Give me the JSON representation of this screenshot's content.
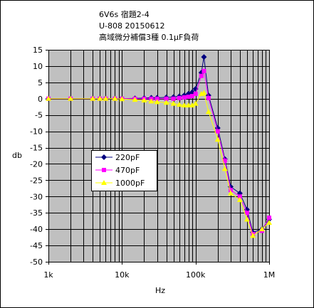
{
  "chart_data": {
    "type": "line",
    "title_lines": [
      "6V6s 宿題2-4",
      "U-808 20150612",
      "高域微分補償3種 0.1μF負荷"
    ],
    "xlabel": "Hz",
    "ylabel": "db",
    "x_scale": "log",
    "xlim": [
      1000,
      1000000
    ],
    "ylim": [
      -50,
      15
    ],
    "x_ticks": [
      1000,
      10000,
      100000,
      1000000
    ],
    "x_tick_labels": [
      "1k",
      "10k",
      "100k",
      "1M"
    ],
    "y_ticks": [
      15,
      10,
      5,
      0,
      -5,
      -10,
      -15,
      -20,
      -25,
      -30,
      -35,
      -40,
      -45,
      -50
    ],
    "y_tick_labels": [
      "15",
      "10",
      "5",
      "0",
      "-5",
      "-10",
      "-15",
      "-20",
      "-25",
      "-30",
      "-35",
      "-40",
      "-45",
      "-50"
    ],
    "grid": true,
    "legend_position": "center-left",
    "x": [
      1000,
      2000,
      4000,
      5000,
      6000,
      8000,
      10000,
      15000,
      20000,
      25000,
      30000,
      40000,
      50000,
      60000,
      70000,
      80000,
      90000,
      100000,
      120000,
      130000,
      150000,
      200000,
      250000,
      300000,
      400000,
      500000,
      600000,
      800000,
      1000000
    ],
    "series": [
      {
        "name": "220pF",
        "color": "#000080",
        "marker": "diamond",
        "values": [
          0,
          0,
          0,
          0,
          0,
          0,
          0,
          0.1,
          0.2,
          0.3,
          0.3,
          0.4,
          0.5,
          0.7,
          1.0,
          1.5,
          2.0,
          3.0,
          8.0,
          12.8,
          1.0,
          -9.0,
          -18.5,
          -27.0,
          -29.0,
          -34.0,
          -41.0,
          -40.0,
          -37.0
        ]
      },
      {
        "name": "470pF",
        "color": "#ff00ff",
        "marker": "square",
        "values": [
          0,
          0,
          0,
          0,
          0,
          0,
          0,
          0,
          0,
          0,
          0,
          0,
          0,
          0.2,
          0.4,
          0.6,
          0.8,
          1.5,
          7.0,
          8.5,
          0.2,
          -10.0,
          -19.0,
          -28.0,
          -30.0,
          -35.0,
          -41.5,
          -40.5,
          -36.5
        ]
      },
      {
        "name": "1000pF",
        "color": "#ffff00",
        "marker": "triangle",
        "values": [
          0,
          0,
          0,
          0,
          0,
          0,
          -0.1,
          -0.3,
          -0.5,
          -0.8,
          -1.0,
          -1.2,
          -1.5,
          -1.8,
          -2.0,
          -2.0,
          -2.0,
          -1.5,
          1.5,
          1.8,
          -4.0,
          -12.5,
          -21.5,
          -29.0,
          -31.0,
          -37.0,
          -42.0,
          -40.0,
          -38.0
        ]
      }
    ]
  }
}
